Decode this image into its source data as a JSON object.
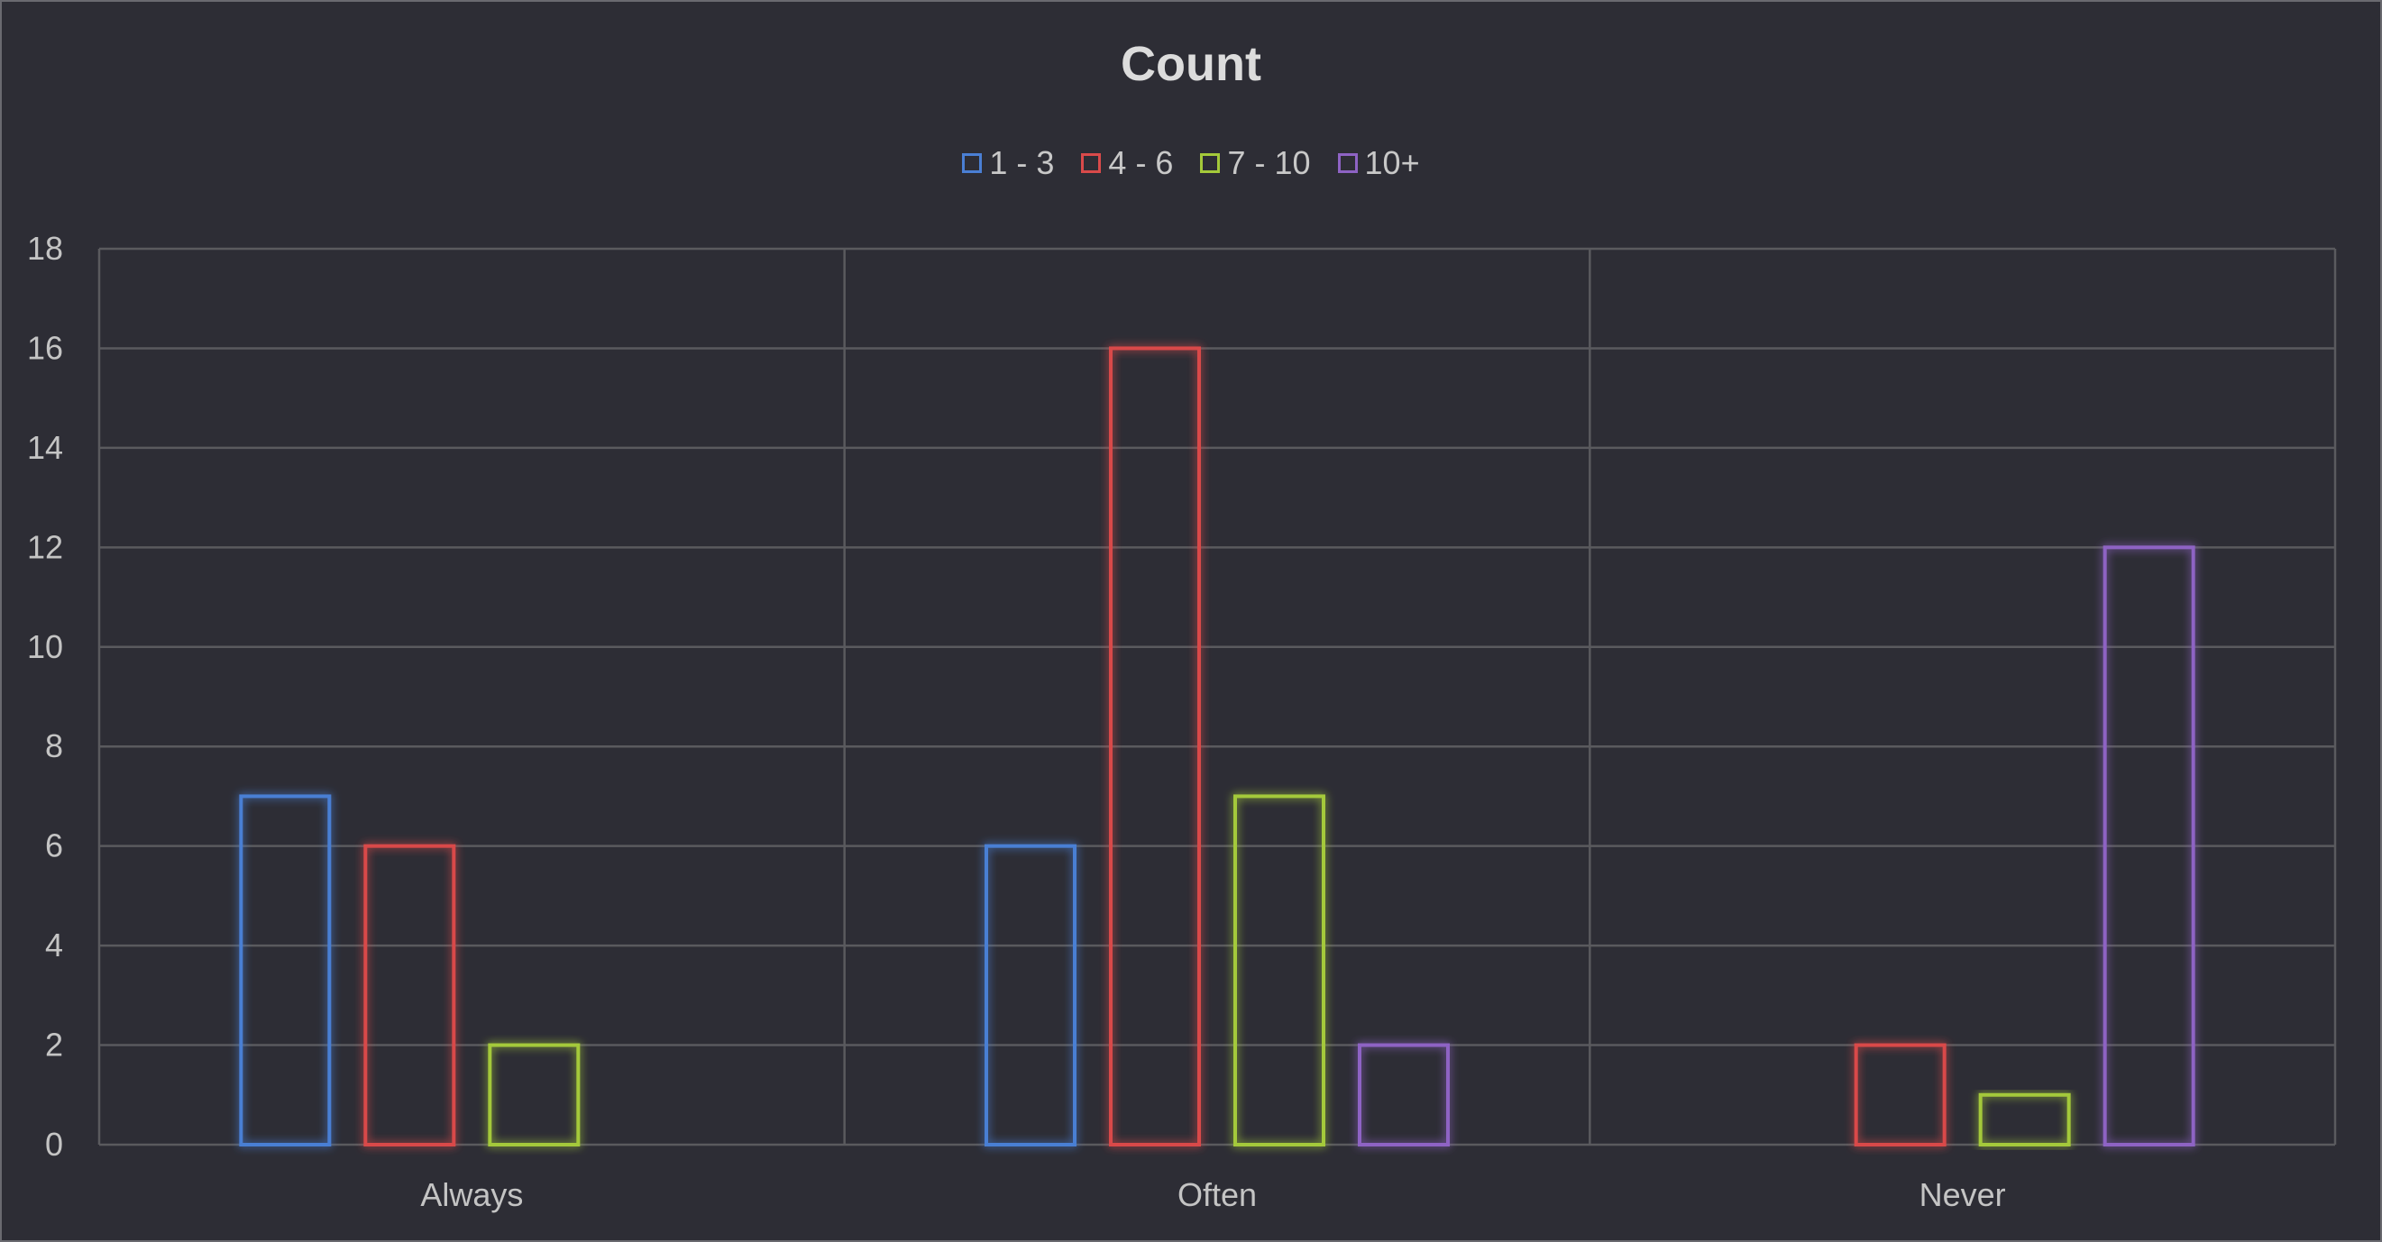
{
  "chart_data": {
    "type": "bar",
    "title": "Count",
    "xlabel": "",
    "ylabel": "",
    "categories": [
      "Always",
      "Often",
      "Never"
    ],
    "series": [
      {
        "name": "1 - 3",
        "color": "#4a7fd4",
        "values": [
          7,
          6,
          0
        ]
      },
      {
        "name": "4 - 6",
        "color": "#d94a4a",
        "values": [
          6,
          16,
          2
        ]
      },
      {
        "name": "7 - 10",
        "color": "#a4c93a",
        "values": [
          2,
          7,
          1
        ]
      },
      {
        "name": "10+",
        "color": "#8e63c4",
        "values": [
          0,
          2,
          12
        ]
      }
    ],
    "ylim": [
      0,
      18
    ],
    "yticks": [
      "0",
      "2",
      "4",
      "6",
      "8",
      "10",
      "12",
      "14",
      "16",
      "18"
    ],
    "grid": true,
    "legend_position": "top",
    "style": {
      "bars": "outlined-glow",
      "background": "#2d2d35",
      "gridline": "#5a5a5e"
    }
  }
}
